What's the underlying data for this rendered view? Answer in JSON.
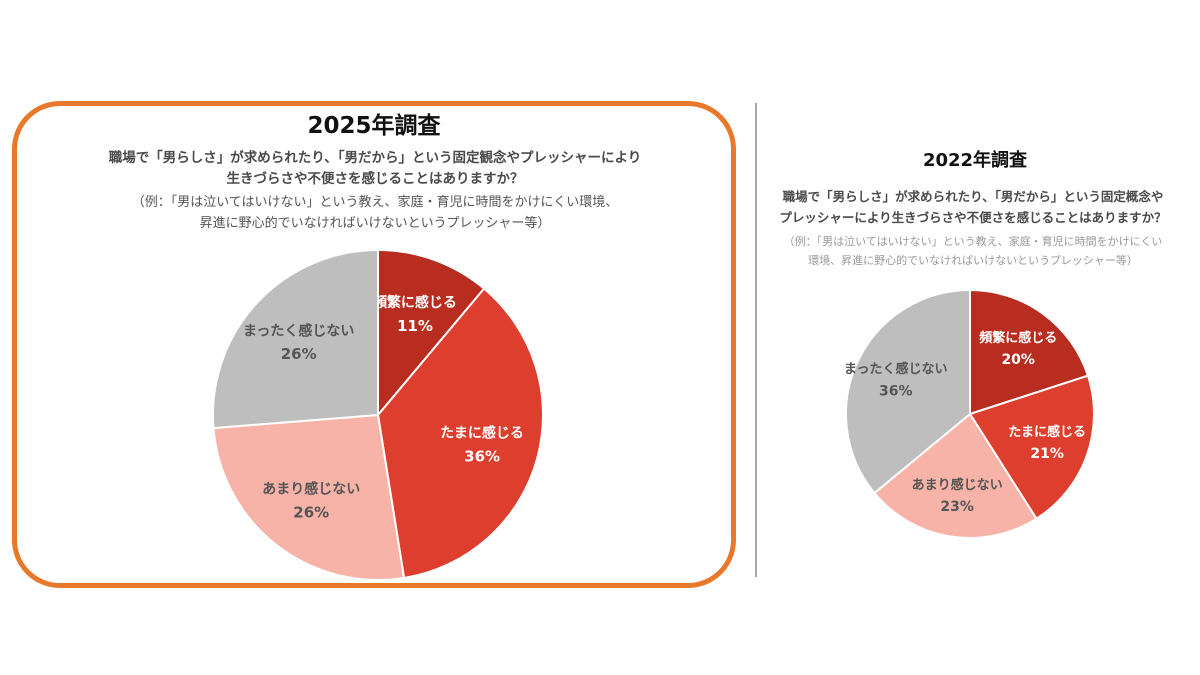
{
  "colors": {
    "frame": "#E8782C",
    "frequent": "#B92D20",
    "sometimes": "#DD3E2E",
    "rarely": "#F7B3A8",
    "never": "#BEBEBE"
  },
  "chart_data": [
    {
      "type": "pie",
      "title": "2025年調査",
      "question": [
        "職場で「男らしさ」が求められたり、「男だから」という固定観念やプレッシャーにより",
        "生きづらさや不便さを感じることはありますか？"
      ],
      "note": [
        "（例：「男は泣いてはいけない」という教え、家庭・育児に時間をかけにくい環境、",
        "昇進に野心的でいなければいけないというプレッシャー等）"
      ],
      "slices": [
        {
          "label": "頻繁に感じる",
          "value": 11,
          "value_label": "11%",
          "color": "#B92D20",
          "text_color": "#ffffff"
        },
        {
          "label": "たまに感じる",
          "value": 36,
          "value_label": "36%",
          "color": "#DD3E2E",
          "text_color": "#ffffff"
        },
        {
          "label": "あまり感じない",
          "value": 26,
          "value_label": "26%",
          "color": "#F7B3A8",
          "text_color": "#555555"
        },
        {
          "label": "まったく感じない",
          "value": 26,
          "value_label": "26%",
          "color": "#BEBEBE",
          "text_color": "#555555"
        }
      ]
    },
    {
      "type": "pie",
      "title": "2022年調査",
      "question": [
        "職場で「男らしさ」が求められたり、「男だから」という固定概念や",
        "プレッシャーにより生きづらさや不便さを感じることはありますか？"
      ],
      "note": [
        "（例：「男は泣いてはいけない」という教え、家庭・育児に時間をかけにくい",
        "環境、昇進に野心的でいなければいけないというプレッシャー等）"
      ],
      "slices": [
        {
          "label": "頻繁に感じる",
          "value": 20,
          "value_label": "20%",
          "color": "#B92D20",
          "text_color": "#ffffff"
        },
        {
          "label": "たまに感じる",
          "value": 21,
          "value_label": "21%",
          "color": "#DD3E2E",
          "text_color": "#ffffff"
        },
        {
          "label": "あまり感じない",
          "value": 23,
          "value_label": "23%",
          "color": "#F7B3A8",
          "text_color": "#555555"
        },
        {
          "label": "まったく感じない",
          "value": 36,
          "value_label": "36%",
          "color": "#BEBEBE",
          "text_color": "#555555"
        }
      ]
    }
  ]
}
